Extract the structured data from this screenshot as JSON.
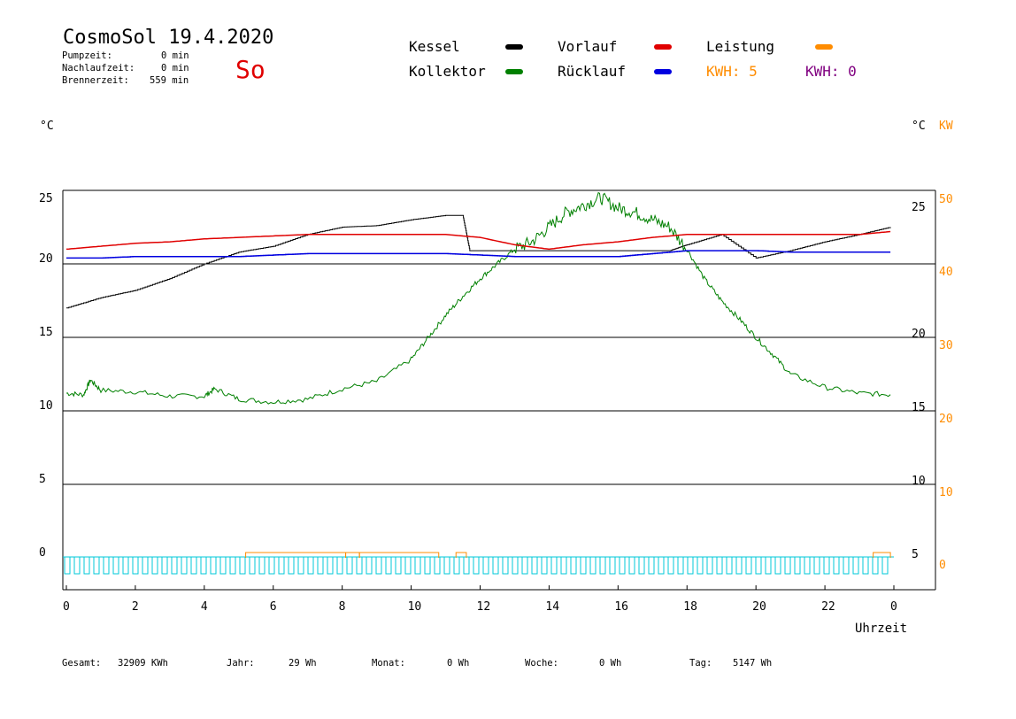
{
  "header": {
    "title": "CosmoSol 19.4.2020",
    "stats": [
      {
        "label": "Pumpzeit:",
        "value": "0 min"
      },
      {
        "label": "Nachlaufzeit:",
        "value": "0 min"
      },
      {
        "label": "Brennerzeit:",
        "value": "559 min"
      }
    ],
    "weekday": "So"
  },
  "legend": {
    "kessel": {
      "label": "Kessel",
      "color": "#000000"
    },
    "kollektor": {
      "label": "Kollektor",
      "color": "#008000"
    },
    "vorlauf": {
      "label": "Vorlauf",
      "color": "#e00000"
    },
    "ruecklauf": {
      "label": "Rücklauf",
      "color": "#0000e0"
    },
    "leistung": {
      "label": "Leistung",
      "color": "#ff8c00"
    },
    "kwh1": "KWH: 5",
    "kwh2": "KWH: 0"
  },
  "axes": {
    "left_unit": "°C",
    "right_unit_c": "°C",
    "right_unit_kw": "KW",
    "xlabel": "Uhrzeit"
  },
  "footer": {
    "gesamt": {
      "label": "Gesamt:",
      "value": "32909 KWh"
    },
    "jahr": {
      "label": "Jahr:",
      "value": "29 Wh"
    },
    "monat": {
      "label": "Monat:",
      "value": "0 Wh"
    },
    "woche": {
      "label": "Woche:",
      "value": "0 Wh"
    },
    "tag": {
      "label": "Tag:",
      "value": "5147 Wh"
    }
  },
  "chart_data": {
    "type": "line",
    "x_ticks": [
      "0",
      "2",
      "4",
      "6",
      "8",
      "10",
      "12",
      "14",
      "16",
      "18",
      "20",
      "22",
      "0"
    ],
    "y_left_ticks": [
      "0",
      "5",
      "10",
      "15",
      "20",
      "25"
    ],
    "y_right_c_ticks": [
      "5",
      "10",
      "15",
      "20",
      "25"
    ],
    "y_right_kw_ticks": [
      "0",
      "10",
      "20",
      "30",
      "40",
      "50"
    ],
    "xlim": [
      0,
      24
    ],
    "ylim": [
      -2,
      25
    ],
    "grid": true,
    "series": [
      {
        "name": "Kessel",
        "color": "#000000",
        "x": [
          0,
          1,
          2,
          3,
          4,
          5,
          6,
          7,
          8,
          9,
          10,
          11,
          11.5,
          11.7,
          12,
          13,
          14,
          15,
          16,
          17,
          17.5,
          18,
          19,
          20,
          21,
          22,
          23,
          23.9
        ],
        "y": [
          17.0,
          17.7,
          18.2,
          19.0,
          20.0,
          20.8,
          21.2,
          22.0,
          22.5,
          22.6,
          23.0,
          23.3,
          23.3,
          20.9,
          20.9,
          20.9,
          20.9,
          20.9,
          20.9,
          20.9,
          20.9,
          21.3,
          22.0,
          20.4,
          20.9,
          21.5,
          22.0,
          22.5
        ]
      },
      {
        "name": "Kollektor",
        "color": "#008000",
        "x": [
          0,
          0.5,
          0.7,
          1,
          2,
          3,
          4,
          4.3,
          5,
          6,
          7,
          8,
          9,
          10,
          10.5,
          11,
          11.5,
          12,
          12.5,
          13,
          13.5,
          14,
          14.5,
          15,
          15.5,
          16,
          16.5,
          17,
          17.5,
          18,
          18.5,
          19,
          19.5,
          20,
          20.5,
          21,
          22,
          23,
          23.9
        ],
        "y": [
          11.2,
          11.1,
          12.1,
          11.4,
          11.3,
          11.0,
          11.0,
          11.5,
          10.8,
          10.6,
          10.8,
          11.5,
          12.0,
          13.5,
          15.0,
          16.5,
          17.8,
          19.0,
          20.0,
          21.0,
          21.5,
          22.5,
          23.5,
          24.0,
          24.5,
          23.8,
          23.5,
          23.0,
          22.5,
          21.0,
          19.0,
          17.5,
          16.3,
          15.0,
          13.8,
          12.5,
          11.6,
          11.2,
          11.1
        ]
      },
      {
        "name": "Vorlauf",
        "color": "#e00000",
        "x": [
          0,
          1,
          2,
          3,
          4,
          5,
          6,
          7,
          8,
          9,
          10,
          11,
          12,
          13,
          14,
          15,
          16,
          17,
          18,
          19,
          20,
          21,
          22,
          23,
          23.9
        ],
        "y": [
          21.0,
          21.2,
          21.4,
          21.5,
          21.7,
          21.8,
          21.9,
          22.0,
          22.0,
          22.0,
          22.0,
          22.0,
          21.8,
          21.3,
          21.0,
          21.3,
          21.5,
          21.8,
          22.0,
          22.0,
          22.0,
          22.0,
          22.0,
          22.0,
          22.2
        ]
      },
      {
        "name": "Rücklauf",
        "color": "#0000e0",
        "x": [
          0,
          1,
          2,
          3,
          4,
          5,
          6,
          7,
          8,
          9,
          10,
          11,
          12,
          13,
          14,
          15,
          16,
          17,
          18,
          19,
          20,
          21,
          22,
          23,
          23.9
        ],
        "y": [
          20.4,
          20.4,
          20.5,
          20.5,
          20.5,
          20.5,
          20.6,
          20.7,
          20.7,
          20.7,
          20.7,
          20.7,
          20.6,
          20.5,
          20.5,
          20.5,
          20.5,
          20.7,
          20.9,
          20.9,
          20.9,
          20.8,
          20.8,
          20.8,
          20.8
        ]
      }
    ]
  }
}
